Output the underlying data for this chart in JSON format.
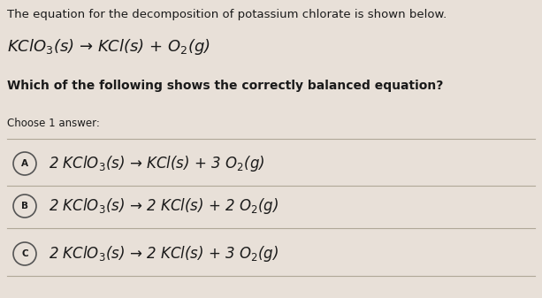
{
  "bg_color": "#e8e0d8",
  "text_color": "#1a1a1a",
  "title_text": "The equation for the decomposition of potassium chlorate is shown below.",
  "equation": "KClO$_3$(s) → KCl(s) + O$_2$(g)",
  "question": "Which of the following shows the correctly balanced equation?",
  "choose": "Choose 1 answer:",
  "options": [
    {
      "label": "A",
      "eq": "2 KClO$_3$(s) → KCl(s) + 3 O$_2$(g)"
    },
    {
      "label": "B",
      "eq": "2 KClO$_3$(s) → 2 KCl(s) + 2 O$_2$(g)"
    },
    {
      "label": "C",
      "eq": "2 KClO$_3$(s) → 2 KCl(s) + 3 O$_2$(g)"
    }
  ],
  "title_fontsize": 9.5,
  "eq_fontsize": 13,
  "question_fontsize": 10,
  "choose_fontsize": 8.5,
  "option_fontsize": 12,
  "divider_color": "#b0a898",
  "circle_color": "#555555",
  "label_fontsize": 7.5
}
